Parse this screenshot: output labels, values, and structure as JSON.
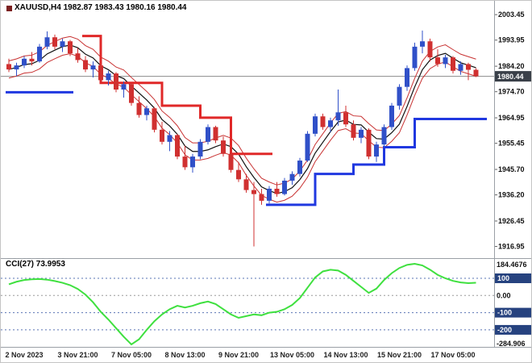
{
  "header": {
    "symbol": "XAUUSD",
    "timeframe": "H4",
    "open": "1982.87",
    "high": "1983.43",
    "low": "1980.16",
    "close": "1980.44",
    "symbol_line": "XAUUSD,H4 1982.87 1983.43 1980.16 1980.44"
  },
  "cci": {
    "label": "CCI(27) 73.9953"
  },
  "colors": {
    "bull": "#3050c8",
    "bear": "#d03030",
    "ma": "#101010",
    "envelope": "#c83232",
    "stop_red": "#e02828",
    "stop_blue": "#2038e0",
    "cci_line": "#3fe03f",
    "price_line": "#8c8c8c",
    "badge_price_bg": "#3a4049",
    "badge_level_bg": "#26427f",
    "separator": "#9aa0a6",
    "axis_text": "#111111",
    "level_dash": "#5a74b4",
    "zero_dash": "#9a9a9a",
    "marker": "#7b2020"
  },
  "x_axis": {
    "labels": [
      {
        "i": 2,
        "t": "2 Nov 2023"
      },
      {
        "i": 9,
        "t": "3 Nov 21:00"
      },
      {
        "i": 16,
        "t": "7 Nov 05:00"
      },
      {
        "i": 23,
        "t": "8 Nov 13:00"
      },
      {
        "i": 30,
        "t": "9 Nov 21:00"
      },
      {
        "i": 37,
        "t": "13 Nov 05:00"
      },
      {
        "i": 44,
        "t": "14 Nov 13:00"
      },
      {
        "i": 51,
        "t": "15 Nov 21:00"
      },
      {
        "i": 58,
        "t": "17 Nov 05:00"
      }
    ]
  },
  "chart_data": {
    "type": "candlestick",
    "title": "XAUUSD H4 candlestick chart with MA envelope, trend-stop steps and CCI(27) sub-window",
    "price_axis": {
      "min": 1913.5,
      "max": 2005.0,
      "current": 1980.44,
      "tick_labels": [
        2003.45,
        1993.95,
        1984.2,
        1974.7,
        1964.95,
        1955.45,
        1945.7,
        1936.2,
        1926.45,
        1916.95
      ]
    },
    "ohlc": [
      [
        1985.0,
        1987.0,
        1982.0,
        1983.0
      ],
      [
        1983.0,
        1985.5,
        1980.5,
        1984.5
      ],
      [
        1984.5,
        1988.0,
        1983.5,
        1987.0
      ],
      [
        1987.0,
        1989.5,
        1984.5,
        1986.0
      ],
      [
        1986.0,
        1992.5,
        1985.5,
        1991.5
      ],
      [
        1991.5,
        1997.2,
        1990.5,
        1995.0
      ],
      [
        1995.0,
        1996.0,
        1990.5,
        1991.5
      ],
      [
        1991.5,
        1994.5,
        1989.5,
        1993.5
      ],
      [
        1993.5,
        1994.0,
        1988.0,
        1989.0
      ],
      [
        1989.0,
        1991.0,
        1985.5,
        1986.5
      ],
      [
        1986.5,
        1988.0,
        1982.0,
        1983.0
      ],
      [
        1983.0,
        1986.0,
        1980.0,
        1984.5
      ],
      [
        1984.5,
        1985.0,
        1978.0,
        1979.0
      ],
      [
        1979.0,
        1982.5,
        1977.0,
        1981.5
      ],
      [
        1981.5,
        1982.0,
        1974.5,
        1975.5
      ],
      [
        1975.5,
        1978.5,
        1972.5,
        1977.5
      ],
      [
        1977.5,
        1978.0,
        1969.5,
        1970.5
      ],
      [
        1970.5,
        1973.0,
        1965.0,
        1966.0
      ],
      [
        1966.0,
        1969.5,
        1964.0,
        1968.5
      ],
      [
        1968.5,
        1969.0,
        1959.5,
        1960.5
      ],
      [
        1960.5,
        1963.5,
        1955.0,
        1956.0
      ],
      [
        1956.0,
        1960.0,
        1952.5,
        1958.5
      ],
      [
        1958.5,
        1959.0,
        1949.5,
        1950.5
      ],
      [
        1950.5,
        1954.5,
        1945.5,
        1946.5
      ],
      [
        1946.5,
        1951.5,
        1944.5,
        1950.5
      ],
      [
        1950.5,
        1957.0,
        1949.5,
        1956.0
      ],
      [
        1956.0,
        1962.5,
        1955.0,
        1961.5
      ],
      [
        1961.5,
        1962.0,
        1955.5,
        1956.5
      ],
      [
        1956.5,
        1958.0,
        1950.5,
        1951.5
      ],
      [
        1951.5,
        1953.0,
        1944.5,
        1945.5
      ],
      [
        1945.5,
        1948.5,
        1941.0,
        1942.0
      ],
      [
        1942.0,
        1944.0,
        1937.0,
        1938.0
      ],
      [
        1938.0,
        1941.0,
        1916.95,
        1936.5
      ],
      [
        1936.5,
        1938.5,
        1932.5,
        1934.0
      ],
      [
        1934.0,
        1939.5,
        1933.0,
        1938.5
      ],
      [
        1938.5,
        1941.0,
        1935.5,
        1936.5
      ],
      [
        1936.5,
        1942.5,
        1936.0,
        1941.5
      ],
      [
        1941.5,
        1945.0,
        1940.0,
        1944.0
      ],
      [
        1944.0,
        1950.0,
        1943.0,
        1949.0
      ],
      [
        1949.0,
        1960.0,
        1948.5,
        1959.0
      ],
      [
        1959.0,
        1966.5,
        1958.0,
        1965.5
      ],
      [
        1965.5,
        1966.5,
        1960.5,
        1961.5
      ],
      [
        1961.5,
        1965.0,
        1959.5,
        1964.0
      ],
      [
        1964.0,
        1975.5,
        1962.0,
        1967.0
      ],
      [
        1967.0,
        1969.5,
        1961.5,
        1962.5
      ],
      [
        1962.5,
        1964.0,
        1956.5,
        1957.5
      ],
      [
        1957.5,
        1961.5,
        1955.5,
        1960.5
      ],
      [
        1960.5,
        1961.0,
        1949.5,
        1950.5
      ],
      [
        1950.5,
        1956.0,
        1948.5,
        1955.0
      ],
      [
        1955.0,
        1962.5,
        1954.0,
        1961.5
      ],
      [
        1961.5,
        1970.5,
        1960.5,
        1969.5
      ],
      [
        1969.5,
        1977.5,
        1968.0,
        1976.5
      ],
      [
        1976.5,
        1984.5,
        1975.0,
        1983.5
      ],
      [
        1983.5,
        1993.0,
        1982.5,
        1991.5
      ],
      [
        1991.5,
        1997.5,
        1989.0,
        1993.5
      ],
      [
        1993.5,
        1994.5,
        1986.0,
        1987.5
      ],
      [
        1987.5,
        1990.5,
        1984.0,
        1985.0
      ],
      [
        1985.0,
        1988.5,
        1983.5,
        1987.5
      ],
      [
        1987.5,
        1988.0,
        1981.5,
        1982.5
      ],
      [
        1982.5,
        1986.0,
        1981.0,
        1985.0
      ],
      [
        1985.0,
        1985.5,
        1979.0,
        1982.87
      ],
      [
        1982.87,
        1983.43,
        1980.16,
        1980.44
      ]
    ],
    "overlays": {
      "ma_period": 5,
      "envelope_offset": 3.2,
      "trend_stops": [
        {
          "c": "blue",
          "a": 0,
          "b": 8,
          "p": 1974.5
        },
        {
          "c": "red",
          "a": 10,
          "b": 12,
          "p": 1995.5
        },
        {
          "c": "red",
          "a": 12,
          "b": 20,
          "p": 1978.0
        },
        {
          "c": "red",
          "a": 20,
          "b": 25,
          "p": 1969.5
        },
        {
          "c": "red",
          "a": 25,
          "b": 29,
          "p": 1965.0
        },
        {
          "c": "red",
          "a": 29,
          "b": 34,
          "p": 1951.5
        },
        {
          "c": "blue",
          "a": 34,
          "b": 40,
          "p": 1932.5
        },
        {
          "c": "blue",
          "a": 40,
          "b": 45,
          "p": 1944.0
        },
        {
          "c": "blue",
          "a": 45,
          "b": 49,
          "p": 1947.5
        },
        {
          "c": "blue",
          "a": 49,
          "b": 53,
          "p": 1954.0
        },
        {
          "c": "blue",
          "a": 53,
          "b": 62,
          "p": 1964.5
        }
      ]
    },
    "indicator": {
      "name": "CCI",
      "period": 27,
      "current": 73.9953,
      "scale_max": 184.4676,
      "scale_min": -284.906,
      "levels": [
        100,
        0,
        -100,
        -200
      ],
      "values": [
        65,
        80,
        90,
        94,
        96,
        92,
        84,
        74,
        60,
        38,
        5,
        -40,
        -95,
        -140,
        -190,
        -240,
        -284.906,
        -255,
        -200,
        -150,
        -110,
        -80,
        -60,
        -70,
        -60,
        -45,
        -35,
        -50,
        -80,
        -110,
        -130,
        -120,
        -110,
        -115,
        -100,
        -95,
        -80,
        -55,
        -15,
        45,
        105,
        140,
        150,
        145,
        120,
        85,
        50,
        15,
        40,
        90,
        130,
        160,
        178,
        184.4676,
        175,
        150,
        120,
        100,
        85,
        76,
        72,
        73.9953
      ]
    }
  }
}
